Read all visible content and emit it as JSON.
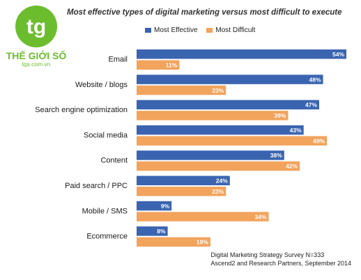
{
  "logo": {
    "monogram": "tg",
    "brand": "THẾ GIỚI SỐ",
    "domain": "tgs.com.vn",
    "color": "#6cbd2e"
  },
  "chart_data": {
    "type": "bar",
    "orientation": "horizontal",
    "title": "Most effective types of digital marketing versus most difficult to execute",
    "categories": [
      "Email",
      "Website / blogs",
      "Search engine optimization",
      "Social media",
      "Content",
      "Paid search / PPC",
      "Mobile / SMS",
      "Ecommerce"
    ],
    "series": [
      {
        "name": "Most Effective",
        "color": "#3a64b0",
        "values": [
          54,
          48,
          47,
          43,
          38,
          24,
          9,
          8
        ]
      },
      {
        "name": "Most Difficult",
        "color": "#f2a35c",
        "values": [
          11,
          23,
          39,
          49,
          42,
          23,
          34,
          19
        ]
      }
    ],
    "value_suffix": "%",
    "xlim": [
      0,
      54
    ],
    "legend_position": "top",
    "grid": false
  },
  "source": {
    "line1": "Digital Marketing Strategy Survey N=333",
    "line2": "Ascend2 and Research Partners, September 2014"
  }
}
